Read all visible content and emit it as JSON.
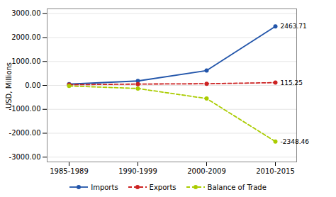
{
  "chart_data": {
    "type": "line",
    "categories": [
      "1985-1989",
      "1990-1999",
      "2000-2009",
      "2010-2015"
    ],
    "series": [
      {
        "name": "Imports",
        "color": "#2255aa",
        "values": [
          52,
          185,
          620,
          2463.71
        ],
        "line_style": "solid",
        "marker": "circle"
      },
      {
        "name": "Exports",
        "color": "#cc2222",
        "values": [
          28,
          55,
          70,
          115.25
        ],
        "line_style": "dashed",
        "marker": "circle"
      },
      {
        "name": "Balance of Trade",
        "color": "#aacc00",
        "values": [
          -24,
          -130,
          -550,
          -2348.46
        ],
        "line_style": "dashed",
        "marker": "circle"
      }
    ],
    "ylabel": "USD, Millions",
    "ylim": [
      -3200,
      3200
    ],
    "yticks": [
      {
        "value": -3000,
        "label": "-3000.00"
      },
      {
        "value": -2000,
        "label": "-2000.00"
      },
      {
        "value": -1000,
        "label": "-1000.00"
      },
      {
        "value": 0,
        "label": "0.00"
      },
      {
        "value": 1000,
        "label": "1000.00"
      },
      {
        "value": 2000,
        "label": "2000.00"
      },
      {
        "value": 3000,
        "label": "3000.00"
      }
    ],
    "annotations": [
      {
        "x": "2010-2015",
        "y": 2463.71,
        "text": "2463.71"
      },
      {
        "x": "2010-2015",
        "y": 115.25,
        "text": "115.25"
      },
      {
        "x": "2010-2015",
        "y": -2348.46,
        "text": "-2348.46"
      }
    ],
    "grid": true,
    "legend": "bottom"
  }
}
